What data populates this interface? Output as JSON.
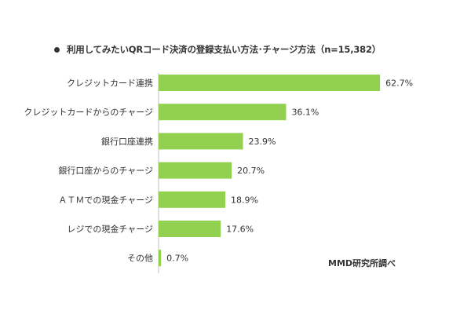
{
  "chart_data": {
    "type": "bar",
    "orientation": "horizontal",
    "title": "利用してみたいQRコード決済の登録支払い方法･チャージ方法（n=15,382）",
    "categories": [
      "クレジットカード連携",
      "クレジットカードからのチャージ",
      "銀行口座連携",
      "銀行口座からのチャージ",
      "ＡＴＭでの現金チャージ",
      "レジでの現金チャージ",
      "その他"
    ],
    "values": [
      62.7,
      36.1,
      23.9,
      20.7,
      18.9,
      17.6,
      0.7
    ],
    "value_labels": [
      "62.7%",
      "36.1%",
      "23.9%",
      "20.7%",
      "18.9%",
      "17.6%",
      "0.7%"
    ],
    "xlim": [
      0,
      100
    ],
    "grid": false,
    "bar_color": "#92d050"
  },
  "source": "MMD研究所調べ"
}
